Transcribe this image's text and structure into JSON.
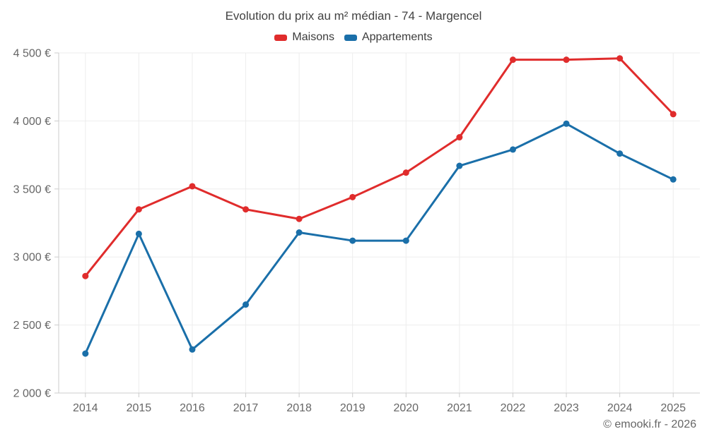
{
  "header": {
    "title": "Evolution du prix au m² médian - 74 - Margencel"
  },
  "footer": {
    "attribution": "© emooki.fr - 2026"
  },
  "colors": {
    "maisons": "#e02c2c",
    "appartements": "#1a6fa9",
    "gridline": "#ededed",
    "axis": "#cccccc",
    "tick_text": "#666666"
  },
  "chart_data": {
    "type": "line",
    "title": "Evolution du prix au m² médian - 74 - Margencel",
    "x": [
      "2014",
      "2015",
      "2016",
      "2017",
      "2018",
      "2019",
      "2020",
      "2021",
      "2022",
      "2023",
      "2024",
      "2025"
    ],
    "series": [
      {
        "name": "Maisons",
        "color": "#e02c2c",
        "values": [
          2860,
          3350,
          3520,
          3350,
          3280,
          3440,
          3620,
          3880,
          4450,
          4450,
          4460,
          4050
        ]
      },
      {
        "name": "Appartements",
        "color": "#1a6fa9",
        "values": [
          2290,
          3170,
          2320,
          2650,
          3180,
          3120,
          3120,
          3670,
          3790,
          3980,
          3760,
          3570
        ]
      }
    ],
    "ylim": [
      2000,
      4500
    ],
    "yticks": [
      {
        "value": 2000,
        "label": "2 000 €"
      },
      {
        "value": 2500,
        "label": "2 500 €"
      },
      {
        "value": 3000,
        "label": "3 000 €"
      },
      {
        "value": 3500,
        "label": "3 500 €"
      },
      {
        "value": 4000,
        "label": "4 000 €"
      },
      {
        "value": 4500,
        "label": "4 500 €"
      }
    ],
    "grid": true,
    "legend_position": "top",
    "unit": "€"
  }
}
